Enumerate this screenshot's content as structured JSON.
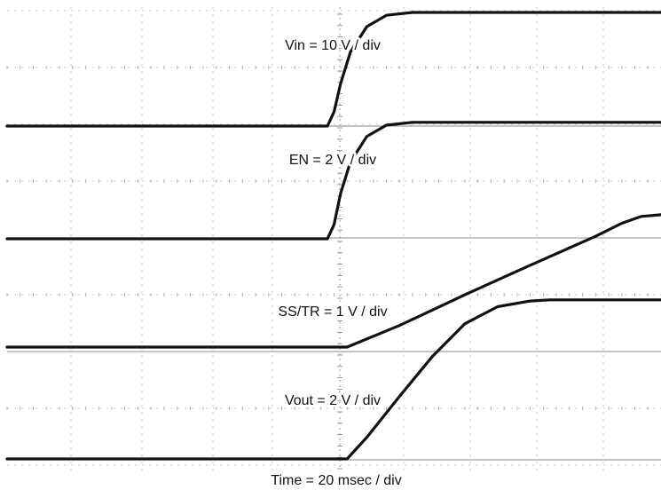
{
  "chart_data": {
    "type": "line",
    "title": "",
    "grid": true,
    "horizontal_divisions": 10,
    "x_scale_label": "Time = 20 msec / div",
    "series": [
      {
        "name": "Vin",
        "scale_label": "Vin = 10 V / div",
        "x_div": [
          0,
          4.9,
          5.0,
          5.1,
          5.25,
          5.5,
          5.8,
          6.2,
          10
        ],
        "y_div": [
          0,
          0,
          0.25,
          0.75,
          1.3,
          1.75,
          1.95,
          2.0,
          2.0
        ]
      },
      {
        "name": "EN",
        "scale_label": "EN = 2 V / div",
        "x_div": [
          0,
          4.9,
          5.0,
          5.1,
          5.25,
          5.5,
          5.8,
          6.2,
          10
        ],
        "y_div": [
          0,
          0,
          0.25,
          0.8,
          1.35,
          1.8,
          2.0,
          2.05,
          2.05
        ]
      },
      {
        "name": "SS/TR",
        "scale_label": "SS/TR = 1 V / div",
        "x_div": [
          0,
          5.2,
          6.0,
          7.0,
          8.0,
          9.0,
          9.4,
          9.7,
          10
        ],
        "y_div": [
          0,
          0,
          0.38,
          0.92,
          1.44,
          1.95,
          2.18,
          2.3,
          2.33
        ]
      },
      {
        "name": "Vout",
        "scale_label": "Vout = 2 V / div",
        "x_div": [
          0,
          5.2,
          5.5,
          6.0,
          6.5,
          7.0,
          7.5,
          8.0,
          8.3,
          10
        ],
        "y_div": [
          0,
          0,
          0.38,
          1.1,
          1.8,
          2.38,
          2.68,
          2.78,
          2.8,
          2.8
        ]
      }
    ]
  }
}
